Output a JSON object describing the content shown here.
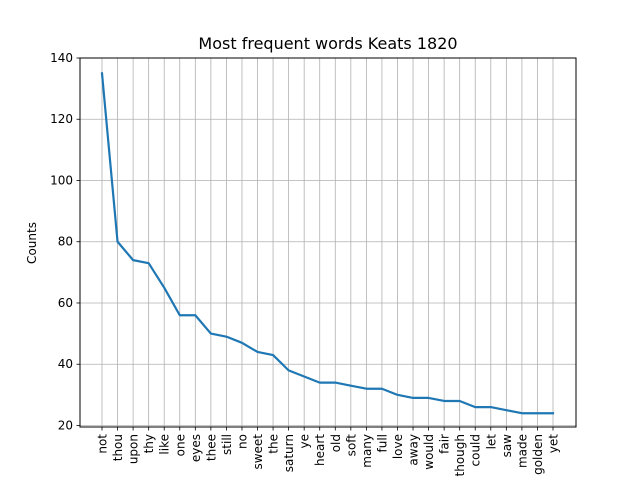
{
  "chart_data": {
    "type": "line",
    "title": "Most frequent words Keats 1820",
    "xlabel": "",
    "ylabel": "Counts",
    "ylim": [
      19.5,
      140
    ],
    "yticks": [
      20,
      40,
      60,
      80,
      100,
      120,
      140
    ],
    "grid": true,
    "categories": [
      "not",
      "thou",
      "upon",
      "thy",
      "like",
      "one",
      "eyes",
      "thee",
      "still",
      "no",
      "sweet",
      "the",
      "saturn",
      "ye",
      "heart",
      "old",
      "soft",
      "many",
      "full",
      "love",
      "away",
      "would",
      "fair",
      "though",
      "could",
      "let",
      "saw",
      "made",
      "golden",
      "yet"
    ],
    "series": [
      {
        "values": [
          135,
          80,
          74,
          73,
          65,
          56,
          56,
          50,
          49,
          47,
          44,
          43,
          38,
          36,
          34,
          34,
          33,
          32,
          32,
          30,
          29,
          29,
          28,
          28,
          26,
          26,
          25,
          24,
          24,
          24
        ],
        "color": "#1f77b4"
      }
    ]
  }
}
